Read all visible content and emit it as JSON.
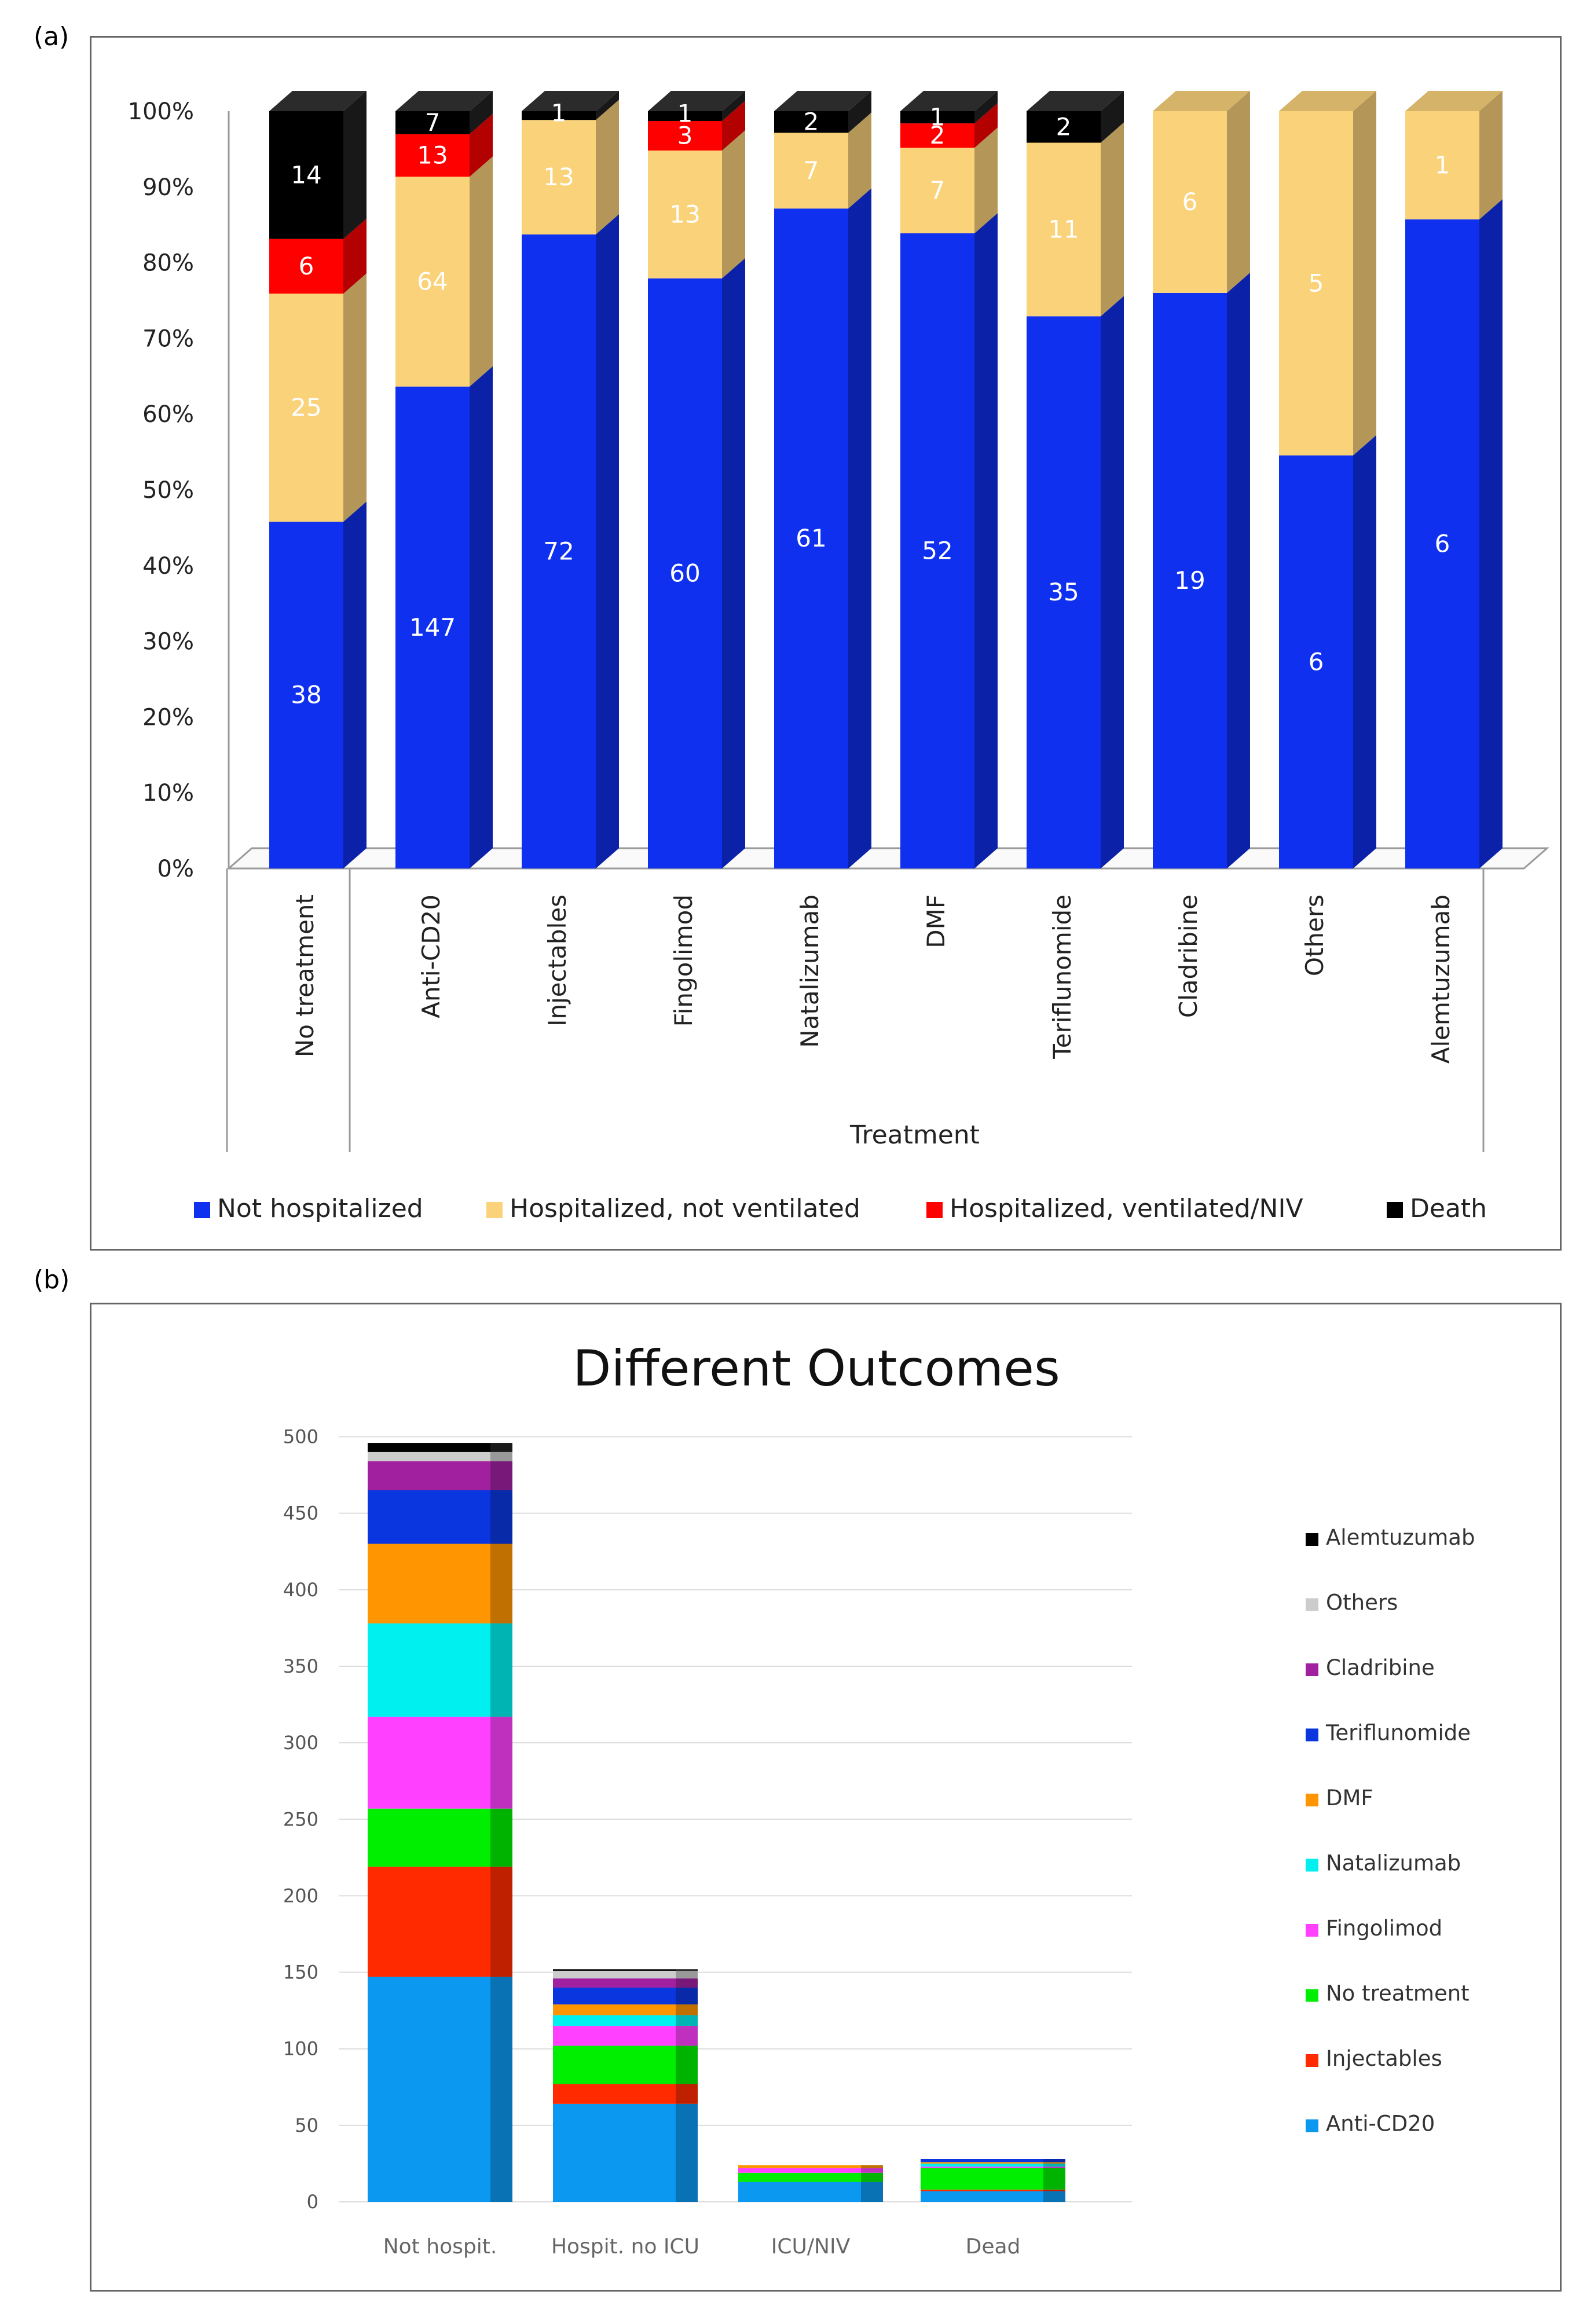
{
  "panels": {
    "a": {
      "label": "(a)"
    },
    "b": {
      "label": "(b)"
    }
  },
  "chart_data": [
    {
      "type": "bar",
      "stacked": true,
      "normalized": true,
      "title": "",
      "xlabel": "Treatment",
      "ylabel": "",
      "yticks": [
        "0%",
        "10%",
        "20%",
        "30%",
        "40%",
        "50%",
        "60%",
        "70%",
        "80%",
        "90%",
        "100%"
      ],
      "ylim": [
        0,
        100
      ],
      "categories": [
        "No treatment",
        "Anti-CD20",
        "Injectables",
        "Fingolimod",
        "Natalizumab",
        "DMF",
        "Teriflunomide",
        "Cladribine",
        "Others",
        "Alemtuzumab"
      ],
      "series": [
        {
          "name": "Not hospitalized",
          "color": "#1030f0",
          "values": [
            38,
            147,
            72,
            60,
            61,
            52,
            35,
            19,
            6,
            6
          ]
        },
        {
          "name": "Hospitalized, not ventilated",
          "color": "#fad27a",
          "values": [
            25,
            64,
            13,
            13,
            7,
            7,
            11,
            6,
            5,
            1
          ]
        },
        {
          "name": "Hospitalized, ventilated/NIV",
          "color": "#ff0000",
          "values": [
            6,
            13,
            0,
            3,
            0,
            2,
            0,
            0,
            0,
            0
          ]
        },
        {
          "name": "Death",
          "color": "#000000",
          "values": [
            14,
            7,
            1,
            1,
            2,
            1,
            2,
            0,
            0,
            0
          ]
        }
      ],
      "legend_position": "bottom"
    },
    {
      "type": "bar",
      "stacked": true,
      "title": "Different Outcomes",
      "xlabel": "",
      "ylabel": "",
      "ylim": [
        0,
        500
      ],
      "yticks": [
        "0",
        "50",
        "100",
        "150",
        "200",
        "250",
        "300",
        "350",
        "400",
        "450",
        "500"
      ],
      "categories": [
        "Not hospit.",
        "Hospit. no ICU",
        "ICU/NIV",
        "Dead"
      ],
      "series": [
        {
          "name": "Anti-CD20",
          "color": "#0a98f0",
          "values": [
            147,
            64,
            13,
            7
          ]
        },
        {
          "name": "Injectables",
          "color": "#ff2a00",
          "values": [
            72,
            13,
            0,
            1
          ]
        },
        {
          "name": "No treatment",
          "color": "#00ee00",
          "values": [
            38,
            25,
            6,
            14
          ]
        },
        {
          "name": "Fingolimod",
          "color": "#ff40ff",
          "values": [
            60,
            13,
            3,
            1
          ]
        },
        {
          "name": "Natalizumab",
          "color": "#00f0f0",
          "values": [
            61,
            7,
            0,
            2
          ]
        },
        {
          "name": "DMF",
          "color": "#ff9500",
          "values": [
            52,
            7,
            2,
            1
          ]
        },
        {
          "name": "Teriflunomide",
          "color": "#0a36e0",
          "values": [
            35,
            11,
            0,
            2
          ]
        },
        {
          "name": "Cladribine",
          "color": "#a020a0",
          "values": [
            19,
            6,
            0,
            0
          ]
        },
        {
          "name": "Others",
          "color": "#cccccc",
          "values": [
            6,
            5,
            0,
            0
          ]
        },
        {
          "name": "Alemtuzumab",
          "color": "#000000",
          "values": [
            6,
            1,
            0,
            0
          ]
        }
      ],
      "legend_order": [
        "Alemtuzumab",
        "Others",
        "Cladribine",
        "Teriflunomide",
        "DMF",
        "Natalizumab",
        "Fingolimod",
        "No treatment",
        "Injectables",
        "Anti-CD20"
      ],
      "legend_position": "right"
    }
  ]
}
